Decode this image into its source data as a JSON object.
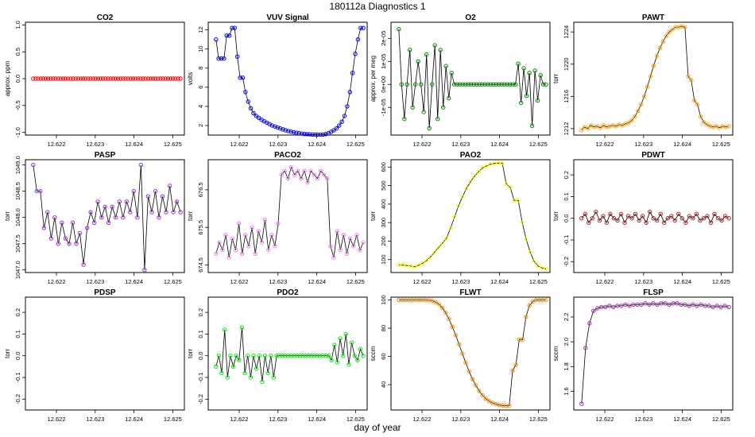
{
  "figure": {
    "title": "180112a   Diagnostics 1",
    "xlabel": "day of year"
  },
  "chart_data": [
    {
      "type": "scatter",
      "title": "CO2",
      "ylabel": "approx. ppm",
      "xlim": [
        12.6212,
        12.6253
      ],
      "ylim": [
        -1.05,
        1.05
      ],
      "yticks": [
        -1,
        -0.5,
        0,
        0.5,
        1
      ],
      "ytick_labels": [
        "-1.0",
        "-0.5",
        "0.0",
        "0.5",
        "1.0"
      ],
      "xticks": [
        12.622,
        12.623,
        12.624,
        12.625
      ],
      "xtick_labels": [
        "12.622",
        "12.623",
        "12.624",
        "12.625"
      ],
      "color": "#ff0000",
      "line": false,
      "x_start": 12.6214,
      "x_end": 12.6252,
      "y_points": [
        0.0,
        0.0,
        0.0,
        0.0,
        0.0,
        0.0,
        0.0,
        0.0,
        0.0,
        0.0,
        0.0,
        0.0,
        0.0,
        0.0,
        0.0,
        0.0,
        0.0,
        0.0,
        0.0,
        0.0,
        0.0,
        0.0,
        0.0,
        0.0,
        0.0,
        0.0,
        0.0,
        0.0,
        0.0,
        0.0,
        0.0,
        0.0,
        0.0,
        0.0,
        0.0,
        0.0,
        0.0,
        0.0,
        0.0,
        0.0,
        0.0,
        0.0,
        0.0,
        0.0,
        0.0,
        0.0,
        0.0,
        0.0,
        0.0,
        0.0,
        0.0,
        0.0,
        0.0,
        0.0,
        0.0,
        0.0,
        0.0,
        0.0,
        0.0,
        0.0
      ]
    },
    {
      "type": "line",
      "title": "VUV Signal",
      "ylabel": "volts",
      "xlim": [
        12.6212,
        12.6253
      ],
      "ylim": [
        1,
        12.8
      ],
      "yticks": [
        2,
        4,
        6,
        8,
        10,
        12
      ],
      "ytick_labels": [
        "2",
        "4",
        "6",
        "8",
        "10",
        "12"
      ],
      "xticks": [
        12.622,
        12.623,
        12.624,
        12.625
      ],
      "xtick_labels": [
        "12.622",
        "12.623",
        "12.624",
        "12.625"
      ],
      "color": "#0000ff",
      "line": true,
      "x_start": 12.6214,
      "x_end": 12.6252,
      "y_points": [
        11.0,
        9.0,
        9.0,
        9.0,
        11.4,
        11.4,
        12.2,
        12.2,
        9.2,
        7.0,
        7.0,
        5.5,
        4.5,
        3.8,
        3.3,
        3.0,
        2.8,
        2.6,
        2.45,
        2.3,
        2.15,
        2.0,
        1.9,
        1.8,
        1.7,
        1.6,
        1.5,
        1.42,
        1.36,
        1.3,
        1.25,
        1.2,
        1.15,
        1.12,
        1.1,
        1.08,
        1.06,
        1.05,
        1.05,
        1.05,
        1.05,
        1.1,
        1.2,
        1.35,
        1.5,
        1.7,
        2.0,
        2.4,
        3.0,
        4.0,
        5.5,
        7.5,
        9.5,
        11.0,
        12.2,
        12.2
      ]
    },
    {
      "type": "line",
      "title": "O2",
      "ylabel": "approx. per meg",
      "xlim": [
        12.6212,
        12.6253
      ],
      "ylim": [
        -2.2e-05,
        2.7e-05
      ],
      "yticks": [
        -1e-05,
        0,
        1e-05,
        2e-05
      ],
      "ytick_labels": [
        "-1e-05",
        "0e+00",
        "1e-05",
        "2e-05"
      ],
      "xticks": [
        12.622,
        12.623,
        12.624,
        12.625
      ],
      "xtick_labels": [
        "12.622",
        "12.623",
        "12.624",
        "12.625"
      ],
      "color": "#008800",
      "line": true,
      "x_start": 12.6214,
      "x_end": 12.6252,
      "y_points": [
        2.4e-05,
        0,
        -1.5e-05,
        0,
        1.5e-05,
        -1e-05,
        0,
        1e-05,
        0,
        -1.2e-05,
        1.3e-05,
        -1.9e-05,
        0,
        1.7e-05,
        -1.5e-05,
        1.5e-05,
        -1e-05,
        8e-06,
        -6e-06,
        5e-06,
        0,
        0,
        0,
        0,
        0,
        0,
        0,
        0,
        0,
        0,
        0,
        0,
        0,
        0,
        0,
        0,
        0,
        0,
        0,
        0,
        0,
        0,
        0,
        9e-06,
        -8e-06,
        7e-06,
        -5e-06,
        5e-06,
        -1.8e-05,
        6e-06,
        -7e-06,
        4e-06,
        0,
        0
      ]
    },
    {
      "type": "line",
      "title": "PAWT",
      "ylabel": "torr",
      "xlim": [
        12.6212,
        12.6253
      ],
      "ylim": [
        1211.2,
        1225.2
      ],
      "yticks": [
        1212,
        1216,
        1220,
        1224
      ],
      "ytick_labels": [
        "1212",
        "1216",
        "1220",
        "1224"
      ],
      "xticks": [
        12.622,
        12.623,
        12.624,
        12.625
      ],
      "xtick_labels": [
        "12.622",
        "12.623",
        "12.624",
        "12.625"
      ],
      "color": "#ffa500",
      "line": true,
      "x_start": 12.6214,
      "x_end": 12.6252,
      "y_points": [
        1211.8,
        1212.2,
        1212.0,
        1212.4,
        1212.2,
        1212.3,
        1212.1,
        1212.4,
        1212.2,
        1212.3,
        1212.4,
        1212.3,
        1212.5,
        1212.4,
        1212.6,
        1212.7,
        1213.0,
        1213.5,
        1214.2,
        1215.0,
        1216.0,
        1217.2,
        1218.5,
        1219.8,
        1221.0,
        1222.0,
        1222.8,
        1223.5,
        1224.0,
        1224.3,
        1224.6,
        1224.6,
        1224.7,
        1224.6,
        1218.5,
        1218.0,
        1215.5,
        1215.0,
        1213.5,
        1212.8,
        1212.5,
        1212.3,
        1212.2,
        1212.3,
        1212.1,
        1212.3,
        1212.2,
        1212.3
      ]
    },
    {
      "type": "line",
      "title": "PASP",
      "ylabel": "torr",
      "xlim": [
        12.6212,
        12.6253
      ],
      "ylim": [
        1046.95,
        1049.1
      ],
      "yticks": [
        1047,
        1047.5,
        1048,
        1048.5,
        1049
      ],
      "ytick_labels": [
        "1047.0",
        "1047.5",
        "1048.0",
        "1048.5",
        "1049.0"
      ],
      "xticks": [
        12.622,
        12.623,
        12.624,
        12.625
      ],
      "xtick_labels": [
        "12.622",
        "12.623",
        "12.624",
        "12.625"
      ],
      "color": "#9932cc",
      "line": true,
      "x_start": 12.6214,
      "x_end": 12.6252,
      "y_points": [
        1049.0,
        1048.5,
        1048.5,
        1047.8,
        1048.1,
        1047.6,
        1048.0,
        1047.5,
        1047.9,
        1047.6,
        1047.5,
        1047.9,
        1047.5,
        1047.7,
        1047.1,
        1047.8,
        1048.1,
        1047.9,
        1048.3,
        1048.0,
        1048.2,
        1047.9,
        1048.2,
        1048.0,
        1048.3,
        1048.0,
        1048.3,
        1048.1,
        1048.5,
        1048.0,
        1049.0,
        1047.0,
        1048.4,
        1048.1,
        1048.5,
        1048.0,
        1048.4,
        1048.1,
        1048.6,
        1048.1,
        1048.3,
        1048.1
      ]
    },
    {
      "type": "line",
      "title": "PACO2",
      "ylabel": "torr",
      "xlim": [
        12.6212,
        12.6253
      ],
      "ylim": [
        674.3,
        677.3
      ],
      "yticks": [
        674.5,
        675.5,
        676.5
      ],
      "ytick_labels": [
        "674.5",
        "675.5",
        "676.5"
      ],
      "xticks": [
        12.622,
        12.623,
        12.624,
        12.625
      ],
      "xtick_labels": [
        "12.622",
        "12.623",
        "12.624",
        "12.625"
      ],
      "color": "#ee82ee",
      "line": true,
      "x_start": 12.6214,
      "x_end": 12.6252,
      "y_points": [
        674.8,
        675.1,
        674.9,
        675.3,
        674.7,
        675.2,
        674.9,
        675.6,
        674.8,
        675.3,
        675.0,
        675.5,
        674.8,
        675.4,
        675.1,
        675.7,
        674.9,
        675.3,
        675.0,
        675.6,
        676.9,
        677.0,
        676.8,
        677.1,
        676.9,
        677.0,
        676.8,
        677.0,
        676.7,
        677.0,
        676.9,
        676.8,
        677.0,
        676.9,
        676.8,
        675.0,
        674.7,
        675.4,
        674.9,
        675.3,
        674.8,
        675.2,
        675.0,
        675.3,
        674.9,
        675.1
      ]
    },
    {
      "type": "line",
      "title": "PAO2",
      "ylabel": "torr",
      "xlim": [
        12.6212,
        12.6253
      ],
      "ylim": [
        30,
        640
      ],
      "yticks": [
        100,
        200,
        300,
        400,
        500,
        600
      ],
      "ytick_labels": [
        "100",
        "200",
        "300",
        "400",
        "500",
        "600"
      ],
      "xticks": [
        12.622,
        12.623,
        12.624,
        12.625
      ],
      "xtick_labels": [
        "12.622",
        "12.623",
        "12.624",
        "12.625"
      ],
      "color": "#ffff00",
      "line": true,
      "x_start": 12.6214,
      "x_end": 12.6252,
      "y_points": [
        70,
        70,
        68,
        65,
        60,
        70,
        80,
        95,
        115,
        140,
        165,
        190,
        215,
        270,
        330,
        390,
        440,
        485,
        520,
        550,
        575,
        595,
        605,
        615,
        620,
        622,
        622,
        510,
        490,
        420,
        420,
        300,
        210,
        140,
        90,
        65,
        55,
        50
      ]
    },
    {
      "type": "line",
      "title": "PDWT",
      "ylabel": "torr",
      "xlim": [
        12.6212,
        12.6253
      ],
      "ylim": [
        -0.25,
        0.27
      ],
      "yticks": [
        -0.2,
        -0.1,
        0,
        0.1,
        0.2
      ],
      "ytick_labels": [
        "-0.2",
        "-0.1",
        "0.0",
        "0.1",
        "0.2"
      ],
      "xticks": [
        12.622,
        12.623,
        12.624,
        12.625
      ],
      "xtick_labels": [
        "12.622",
        "12.623",
        "12.624",
        "12.625"
      ],
      "color": "#a52a2a",
      "line": true,
      "x_start": 12.6214,
      "x_end": 12.6252,
      "y_points": [
        0.0,
        0.02,
        -0.02,
        0.0,
        0.03,
        -0.01,
        0.01,
        -0.02,
        0.02,
        0.0,
        -0.01,
        0.02,
        -0.02,
        0.01,
        0.0,
        0.02,
        -0.01,
        0.01,
        -0.02,
        0.03,
        0.0,
        -0.01,
        0.02,
        -0.02,
        0.0,
        0.01,
        -0.01,
        0.02,
        0.0,
        -0.02,
        0.01,
        0.0,
        0.02,
        -0.01,
        0.0,
        0.01,
        -0.02,
        0.02,
        0.0,
        -0.01,
        0.01,
        0.0
      ]
    },
    {
      "type": "scatter",
      "title": "PDSP",
      "ylabel": "torr",
      "xlim": [
        12.6212,
        12.6253
      ],
      "ylim": [
        -0.25,
        0.27
      ],
      "yticks": [
        -0.2,
        -0.1,
        0,
        0.1,
        0.2
      ],
      "ytick_labels": [
        "-0.2",
        "-0.1",
        "0.0",
        "0.1",
        "0.2"
      ],
      "xticks": [
        12.622,
        12.623,
        12.624,
        12.625
      ],
      "xtick_labels": [
        "12.622",
        "12.623",
        "12.624",
        "12.625"
      ],
      "color": "#000000",
      "line": false,
      "x_start": 12.6214,
      "x_end": 12.6252,
      "y_points": []
    },
    {
      "type": "line",
      "title": "PDO2",
      "ylabel": "torr",
      "xlim": [
        12.6212,
        12.6253
      ],
      "ylim": [
        -0.25,
        0.27
      ],
      "yticks": [
        -0.2,
        -0.1,
        0,
        0.1,
        0.2
      ],
      "ytick_labels": [
        "-0.2",
        "-0.1",
        "0.0",
        "0.1",
        "0.2"
      ],
      "xticks": [
        12.622,
        12.623,
        12.624,
        12.625
      ],
      "xtick_labels": [
        "12.622",
        "12.623",
        "12.624",
        "12.625"
      ],
      "color": "#00ee00",
      "line": true,
      "x_start": 12.6214,
      "x_end": 12.6252,
      "y_points": [
        -0.05,
        0.0,
        -0.08,
        0.12,
        -0.1,
        0.0,
        -0.05,
        0.0,
        -0.02,
        0.13,
        -0.08,
        0.0,
        -0.1,
        0.0,
        -0.06,
        0.0,
        -0.12,
        0.0,
        -0.08,
        0.0,
        -0.1,
        0.0,
        0.0,
        0.0,
        0.0,
        0.0,
        0.0,
        0.0,
        0.0,
        0.0,
        0.0,
        0.0,
        0.0,
        0.0,
        0.0,
        0.0,
        0.0,
        0.0,
        0.0,
        0.0,
        -0.02,
        0.05,
        -0.03,
        0.08,
        0.0,
        0.1,
        -0.04,
        0.06,
        0.0,
        -0.02,
        0.03,
        0.0
      ]
    },
    {
      "type": "line",
      "title": "FLWT",
      "ylabel": "sccm",
      "xlim": [
        12.6212,
        12.6253
      ],
      "ylim": [
        22,
        102
      ],
      "yticks": [
        40,
        60,
        80,
        100
      ],
      "ytick_labels": [
        "40",
        "60",
        "80",
        "100"
      ],
      "xticks": [
        12.622,
        12.623,
        12.624,
        12.625
      ],
      "xtick_labels": [
        "12.622",
        "12.623",
        "12.624",
        "12.625"
      ],
      "color": "#ff8c00",
      "line": true,
      "x_start": 12.6214,
      "x_end": 12.6252,
      "y_points": [
        100,
        100,
        100,
        100,
        100,
        100,
        100,
        100,
        100,
        99.8,
        99.4,
        98.5,
        97,
        94.5,
        91,
        86.5,
        81,
        75,
        68.5,
        62,
        55.5,
        49.5,
        44,
        39.5,
        35.5,
        32.5,
        30,
        28.3,
        27,
        26.2,
        25.5,
        25.2,
        25,
        25,
        50,
        54,
        72,
        72,
        88,
        96,
        99,
        100,
        100,
        100,
        100
      ]
    },
    {
      "type": "line",
      "title": "FLSP",
      "ylabel": "sccm",
      "xlim": [
        12.6212,
        12.6253
      ],
      "ylim": [
        1.45,
        2.36
      ],
      "yticks": [
        1.6,
        1.8,
        2.0,
        2.2
      ],
      "ytick_labels": [
        "1.6",
        "1.8",
        "2.0",
        "2.2"
      ],
      "xticks": [
        12.622,
        12.623,
        12.624,
        12.625
      ],
      "xtick_labels": [
        "12.622",
        "12.623",
        "12.624",
        "12.625"
      ],
      "color": "#9b30aa",
      "line": true,
      "x_start": 12.6214,
      "x_end": 12.6252,
      "y_points": [
        1.5,
        1.95,
        2.15,
        2.25,
        2.27,
        2.28,
        2.28,
        2.29,
        2.28,
        2.29,
        2.29,
        2.3,
        2.29,
        2.3,
        2.3,
        2.3,
        2.31,
        2.3,
        2.31,
        2.3,
        2.31,
        2.31,
        2.3,
        2.31,
        2.31,
        2.3,
        2.3,
        2.29,
        2.3,
        2.29,
        2.3,
        2.29,
        2.29,
        2.28,
        2.29,
        2.28,
        2.29,
        2.28
      ]
    }
  ]
}
